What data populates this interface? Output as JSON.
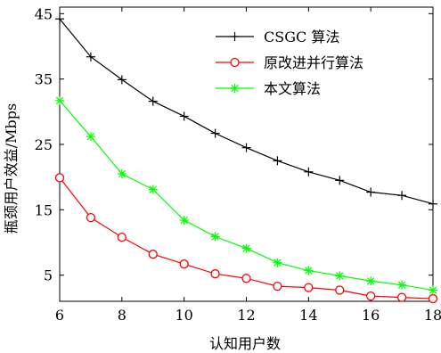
{
  "chart_data": {
    "type": "line",
    "title": "",
    "xlabel": "认知用户数",
    "ylabel": "瓶颈用户效益/Mbps",
    "x": [
      6,
      7,
      8,
      9,
      10,
      11,
      12,
      13,
      14,
      15,
      16,
      17,
      18
    ],
    "xlim": [
      6,
      18
    ],
    "ylim": [
      1,
      46
    ],
    "xticks": [
      "6",
      "8",
      "10",
      "12",
      "14",
      "16",
      "18"
    ],
    "yticks": [
      "5",
      "15",
      "25",
      "35",
      "45"
    ],
    "grid": false,
    "legend_position": "top-right",
    "series": [
      {
        "name": "CSGC 算法",
        "color": "#000000",
        "marker": "plus",
        "values": [
          44.2,
          38.4,
          34.9,
          31.6,
          29.3,
          26.7,
          24.5,
          22.5,
          20.8,
          19.5,
          17.7,
          17.2,
          15.9
        ]
      },
      {
        "name": "原改进并行算法",
        "color": "#ff0000",
        "marker": "circle",
        "values": [
          19.9,
          13.8,
          10.8,
          8.2,
          6.7,
          5.2,
          4.5,
          3.3,
          3.1,
          2.7,
          1.8,
          1.6,
          1.4
        ]
      },
      {
        "name": "本文算法",
        "color": "#00ff00",
        "marker": "star",
        "values": [
          31.7,
          26.2,
          20.5,
          18.1,
          13.4,
          10.9,
          9.1,
          6.9,
          5.7,
          4.9,
          4.1,
          3.5,
          2.7
        ]
      }
    ]
  }
}
